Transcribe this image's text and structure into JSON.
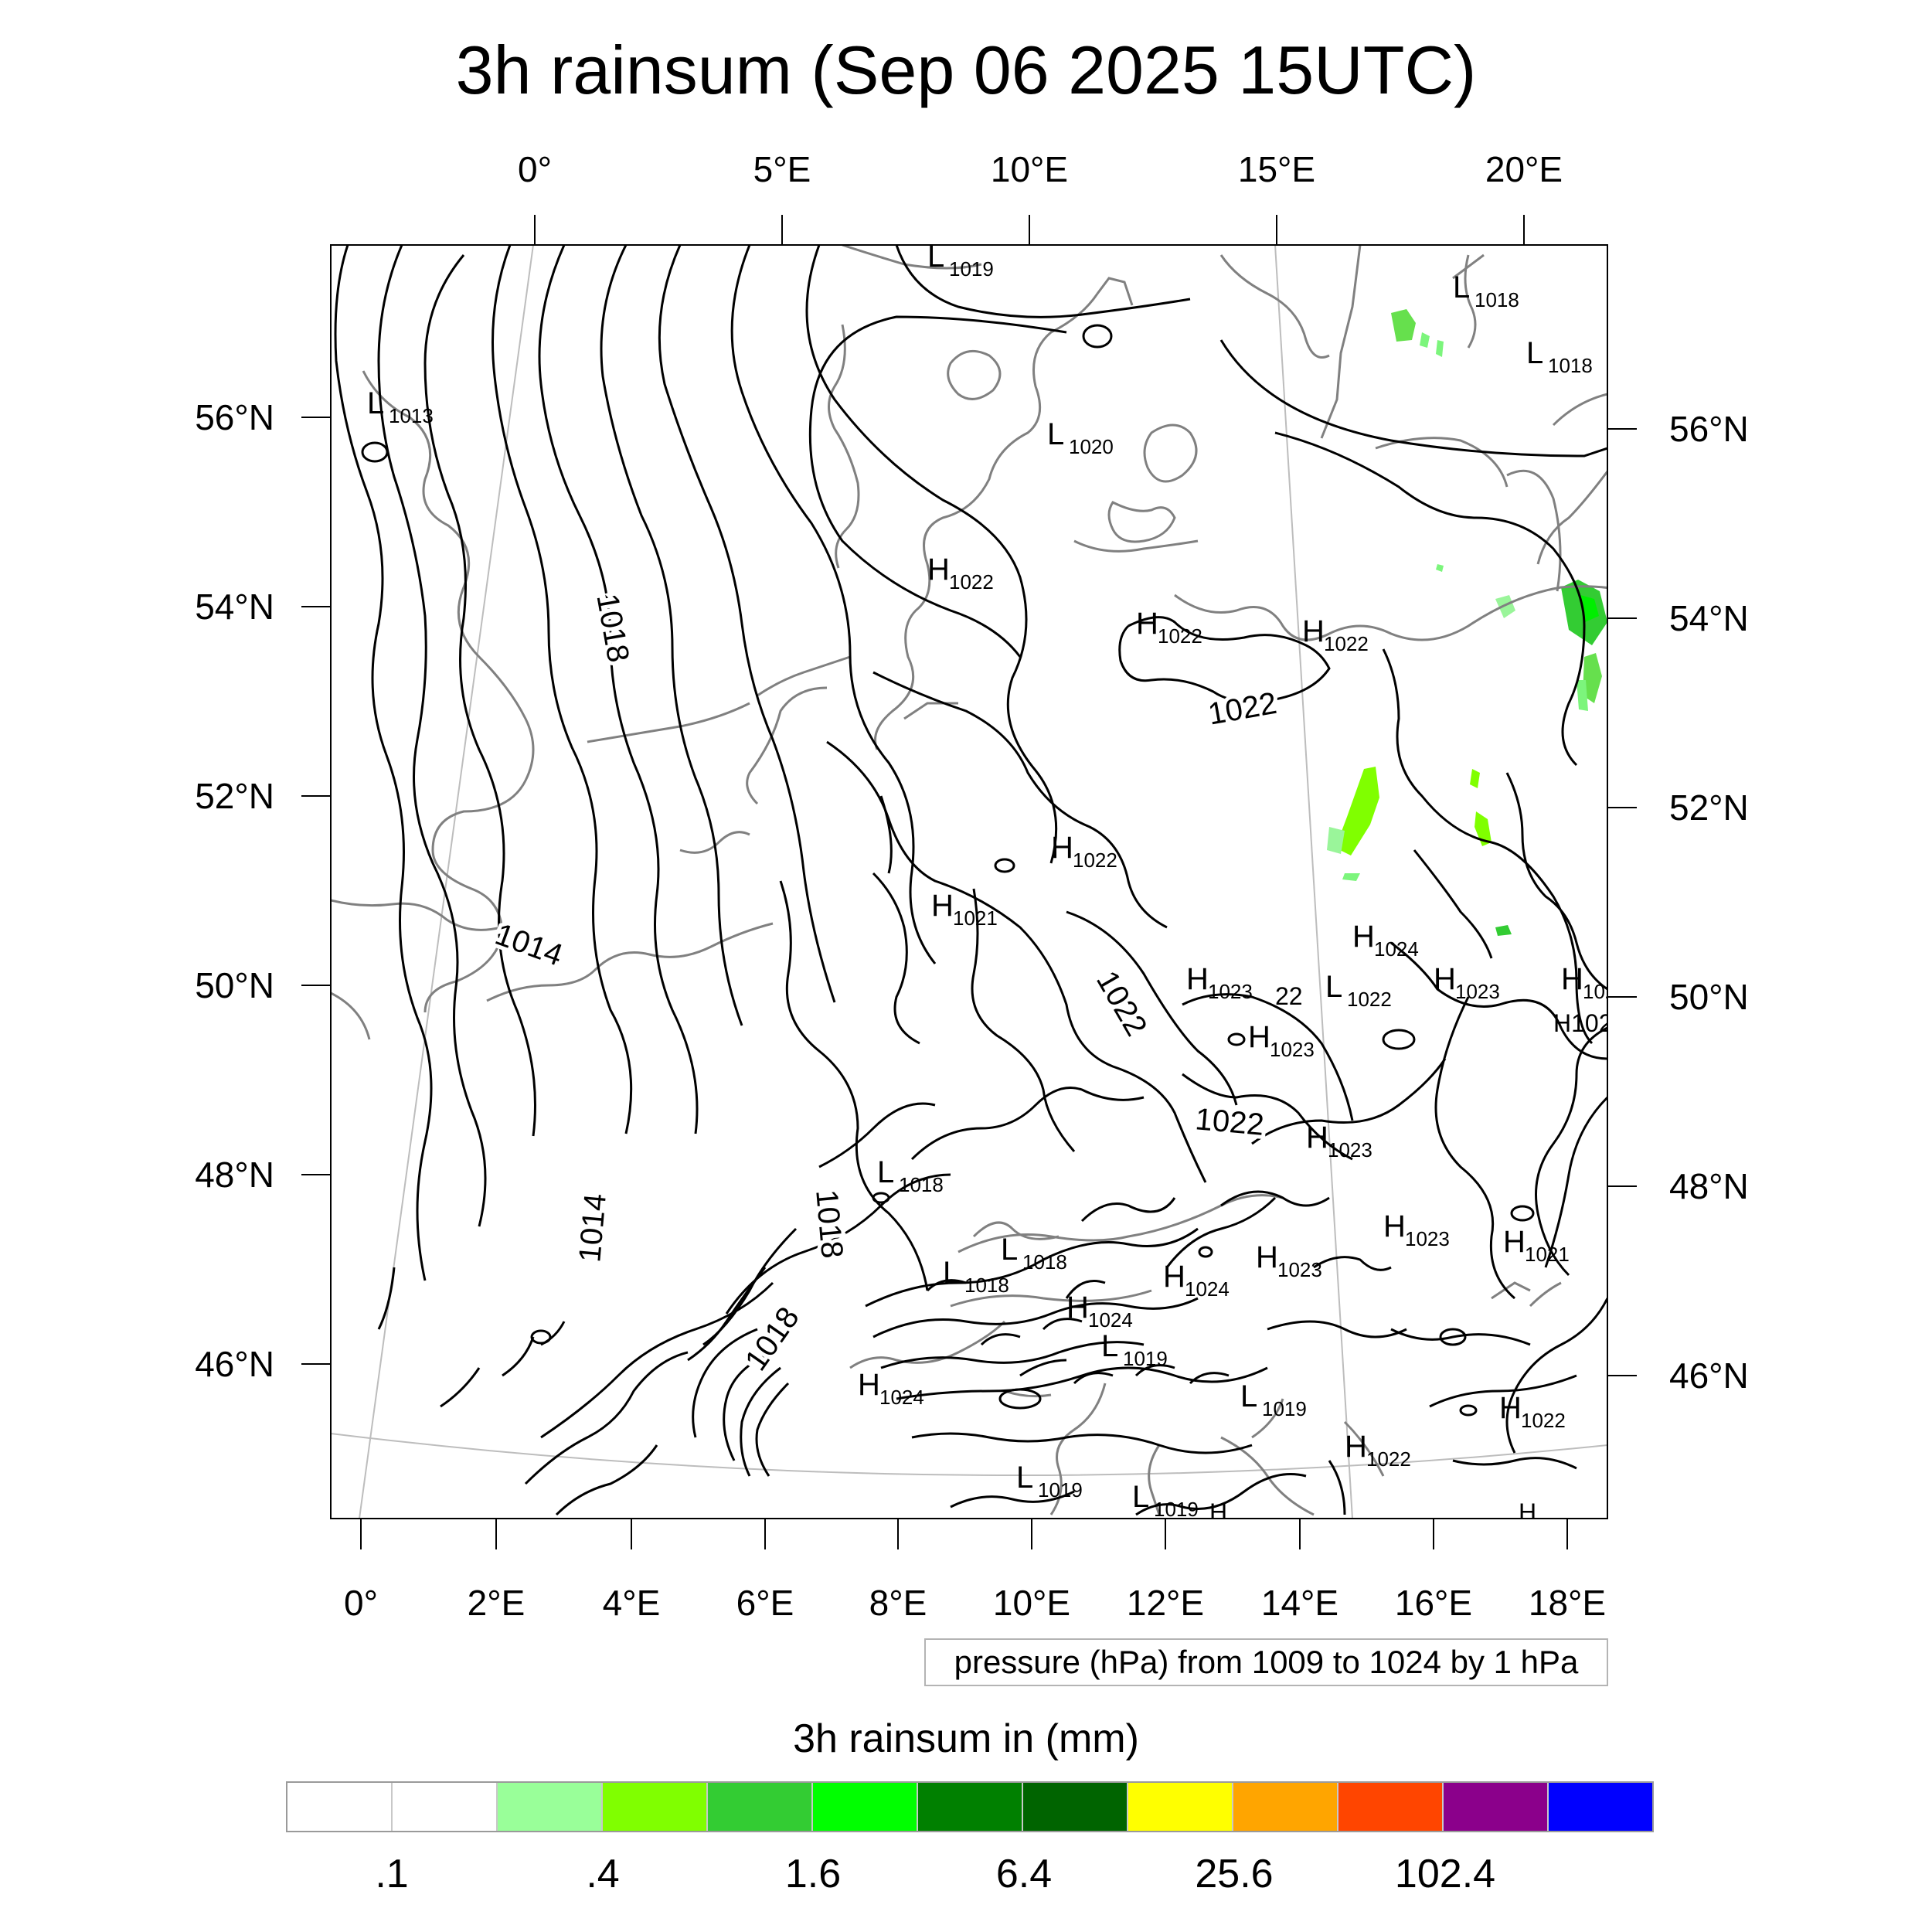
{
  "title": "3h rainsum (Sep 06 2025 15UTC)",
  "top_lon_labels": [
    "0°",
    "5°E",
    "10°E",
    "15°E",
    "20°E"
  ],
  "bottom_lon_labels": [
    "0°",
    "2°E",
    "4°E",
    "6°E",
    "8°E",
    "10°E",
    "12°E",
    "14°E",
    "16°E",
    "18°E"
  ],
  "left_lat_labels": [
    "56°N",
    "54°N",
    "52°N",
    "50°N",
    "48°N",
    "46°N"
  ],
  "right_lat_labels": [
    "56°N",
    "54°N",
    "52°N",
    "50°N",
    "48°N",
    "46°N"
  ],
  "info_text": "pressure (hPa) from 1009 to 1024 by 1 hPa",
  "colorbar": {
    "title": "3h rainsum in (mm)",
    "colors": [
      "#ffffff",
      "#ffffff",
      "#99ff99",
      "#80ff00",
      "#33cc33",
      "#00ff00",
      "#008000",
      "#006400",
      "#ffff00",
      "#ffa500",
      "#ff4500",
      "#8b008b",
      "#0000ff"
    ],
    "labels": [
      ".1",
      ".4",
      "1.6",
      "6.4",
      "25.6",
      "102.4"
    ]
  },
  "pressure_labels": [
    {
      "text": "1018",
      "rotate": 80
    },
    {
      "text": "1014",
      "rotate": 20
    },
    {
      "text": "1014",
      "rotate": -85
    },
    {
      "text": "1018",
      "rotate": 85
    },
    {
      "text": "1018",
      "rotate": -55
    },
    {
      "text": "1022",
      "rotate": -10
    },
    {
      "text": "1022",
      "rotate": 60
    },
    {
      "text": "1022",
      "rotate": 5
    }
  ],
  "centers": [
    {
      "type": "L",
      "value": "1019"
    },
    {
      "type": "L",
      "value": "1018"
    },
    {
      "type": "L",
      "value": "1018"
    },
    {
      "type": "L",
      "value": "1013"
    },
    {
      "type": "L",
      "value": "1020"
    },
    {
      "type": "H",
      "value": "1022"
    },
    {
      "type": "H",
      "value": "1022"
    },
    {
      "type": "H",
      "value": "1022"
    },
    {
      "type": "H",
      "value": "1022"
    },
    {
      "type": "H",
      "value": "1021"
    },
    {
      "type": "H",
      "value": "1023"
    },
    {
      "type": "H",
      "value": "1024"
    },
    {
      "type": "H",
      "value": "1023"
    },
    {
      "type": "L",
      "value": "1022"
    },
    {
      "type": "H",
      "value": "1024"
    },
    {
      "type": "H",
      "value": "1023"
    },
    {
      "type": "H",
      "value": "1023"
    },
    {
      "type": "L",
      "value": "1018"
    },
    {
      "type": "L",
      "value": "1018"
    },
    {
      "type": "L",
      "value": "1018"
    },
    {
      "type": "H",
      "value": "1023"
    },
    {
      "type": "H",
      "value": "1023"
    },
    {
      "type": "H",
      "value": "1021"
    },
    {
      "type": "H",
      "value": "1024"
    },
    {
      "type": "H",
      "value": "1024"
    },
    {
      "type": "L",
      "value": "1019"
    },
    {
      "type": "H",
      "value": "1024"
    },
    {
      "type": "L",
      "value": "1019"
    },
    {
      "type": "H",
      "value": "1022"
    },
    {
      "type": "H",
      "value": "1022"
    },
    {
      "type": "L",
      "value": "1019"
    },
    {
      "type": "L",
      "value": "1019"
    }
  ],
  "partial_labels": [
    "22",
    "H102",
    "H",
    "H"
  ]
}
